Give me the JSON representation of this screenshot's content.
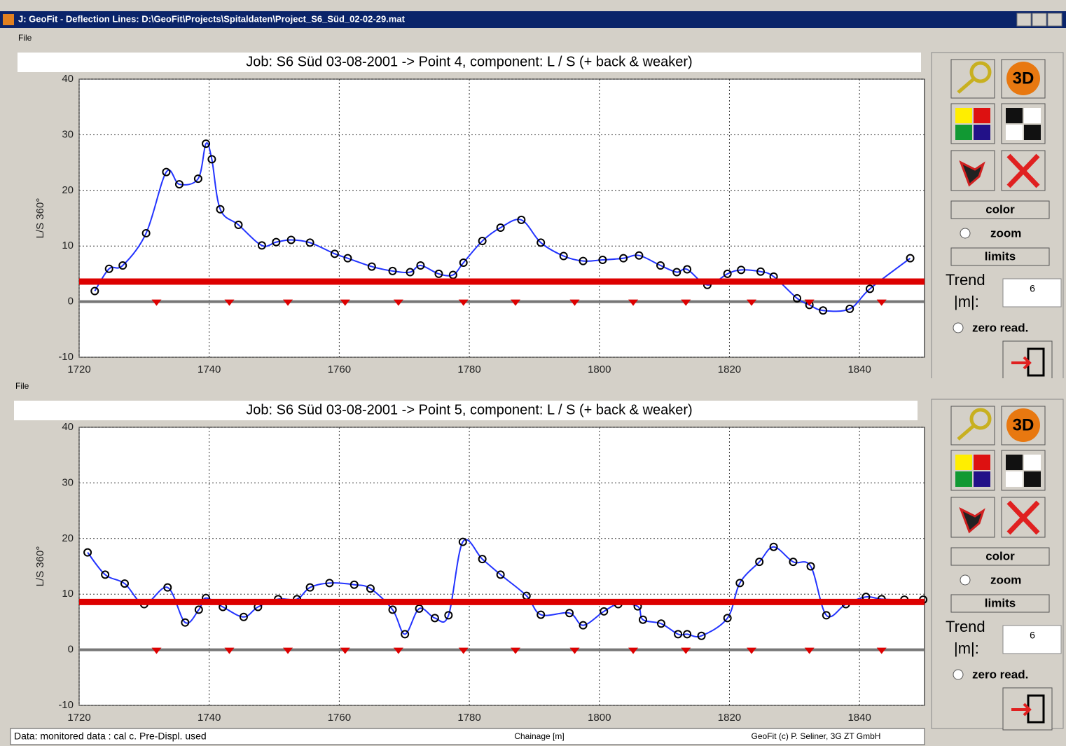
{
  "window": {
    "title": "J: GeoFit - Deflection Lines: D:\\GeoFit\\Projects\\Spitaldaten\\Project_S6_Süd_02-02-29.mat",
    "menu_top": "File",
    "menu_bottom": "File"
  },
  "controls": {
    "three_d": "3D",
    "color": "color",
    "zoom": "zoom",
    "limits": "limits",
    "trend": "Trend",
    "trend_unit": "|m|:",
    "trend_value": "6",
    "zero": "zero read."
  },
  "status": {
    "left": "Data: monitored data : cal c. Pre-Displ. used",
    "center": "Chainage [m]",
    "right": "GeoFit (c) P. Seliner, 3G ZT GmbH"
  },
  "chart_data": [
    {
      "type": "line",
      "title": "Job: S6 Süd 03-08-2001 -> Point 4, component: L / S (+ back & weaker)",
      "y_label": "L/S 360°",
      "x": [
        1722.4,
        1724.6,
        1726.7,
        1730.3,
        1733.4,
        1735.4,
        1738.3,
        1739.5,
        1740.4,
        1741.7,
        1744.5,
        1748.1,
        1750.3,
        1752.6,
        1755.5,
        1759.3,
        1761.3,
        1765.0,
        1768.2,
        1770.9,
        1772.5,
        1775.3,
        1777.5,
        1779.1,
        1782.0,
        1784.8,
        1788.0,
        1791.0,
        1794.5,
        1797.5,
        1800.5,
        1803.7,
        1806.1,
        1809.4,
        1811.9,
        1813.5,
        1816.6,
        1819.7,
        1821.8,
        1824.8,
        1826.8,
        1830.4,
        1832.3,
        1834.4,
        1838.5,
        1841.6,
        1847.8
      ],
      "values": [
        1.9,
        5.9,
        6.5,
        12.3,
        23.3,
        21.1,
        22.1,
        28.4,
        25.6,
        16.6,
        13.8,
        10.1,
        10.7,
        11.1,
        10.6,
        8.6,
        7.8,
        6.3,
        5.5,
        5.3,
        6.5,
        5.0,
        4.8,
        7.0,
        10.9,
        13.3,
        14.7,
        10.6,
        8.2,
        7.3,
        7.5,
        7.8,
        8.3,
        6.5,
        5.3,
        5.8,
        3.0,
        5.0,
        5.7,
        5.4,
        4.5,
        0.6,
        -0.6,
        -1.6,
        -1.3,
        2.3,
        7.8
      ],
      "color": "#2233ff",
      "marker_color": "#000000",
      "reference_line": {
        "value": 3.6,
        "color": "#dd0000"
      },
      "markers": {
        "x": [
          1731.9,
          1743.1,
          1752.1,
          1760.9,
          1769.1,
          1779.1,
          1787.1,
          1796.2,
          1805.2,
          1813.3,
          1823.4,
          1832.3,
          1843.4
        ],
        "color": "#dd0000"
      },
      "xlim": [
        1720,
        1850
      ],
      "xticks": [
        1720,
        1740,
        1760,
        1780,
        1800,
        1820,
        1840
      ],
      "ylim": [
        -10,
        40
      ],
      "yticks": [
        -10,
        0,
        10,
        20,
        30,
        40
      ],
      "grid": true
    },
    {
      "type": "line",
      "title": "Job: S6 Süd 03-08-2001 -> Point 5, component: L / S (+ back & weaker)",
      "y_label": "L/S 360°",
      "x": [
        1721.3,
        1724.0,
        1727.0,
        1730.0,
        1733.6,
        1736.3,
        1738.4,
        1739.5,
        1742.1,
        1745.3,
        1747.5,
        1750.6,
        1753.5,
        1755.5,
        1758.5,
        1762.3,
        1764.8,
        1768.2,
        1770.1,
        1772.3,
        1774.7,
        1776.8,
        1779.0,
        1782.0,
        1784.8,
        1788.8,
        1791.0,
        1795.4,
        1797.5,
        1800.7,
        1802.9,
        1805.9,
        1806.7,
        1809.5,
        1812.1,
        1813.5,
        1815.7,
        1819.7,
        1821.6,
        1824.6,
        1826.8,
        1829.8,
        1832.5,
        1834.9,
        1837.9,
        1841.0,
        1843.4,
        1846.9,
        1849.8
      ],
      "values": [
        17.5,
        13.5,
        11.9,
        8.2,
        11.2,
        4.9,
        7.2,
        9.3,
        7.7,
        5.9,
        7.7,
        9.1,
        9.1,
        11.2,
        12.0,
        11.7,
        11.0,
        7.2,
        2.8,
        7.4,
        5.7,
        6.2,
        19.4,
        16.3,
        13.5,
        9.7,
        6.3,
        6.6,
        4.4,
        6.9,
        8.2,
        7.8,
        5.4,
        4.7,
        2.8,
        2.8,
        2.5,
        5.7,
        12.0,
        15.8,
        18.5,
        15.8,
        15.0,
        6.2,
        8.2,
        9.5,
        9.1,
        9.0,
        9.0
      ],
      "color": "#2233ff",
      "marker_color": "#000000",
      "reference_line": {
        "value": 8.6,
        "color": "#dd0000"
      },
      "markers": {
        "x": [
          1731.9,
          1743.1,
          1752.1,
          1760.9,
          1769.1,
          1779.1,
          1787.1,
          1796.2,
          1805.2,
          1813.3,
          1823.4,
          1832.3,
          1843.4
        ],
        "color": "#dd0000"
      },
      "xlim": [
        1720,
        1850
      ],
      "xticks": [
        1720,
        1740,
        1760,
        1780,
        1800,
        1820,
        1840
      ],
      "ylim": [
        -10,
        40
      ],
      "yticks": [
        -10,
        0,
        10,
        20,
        30,
        40
      ],
      "grid": true
    }
  ]
}
